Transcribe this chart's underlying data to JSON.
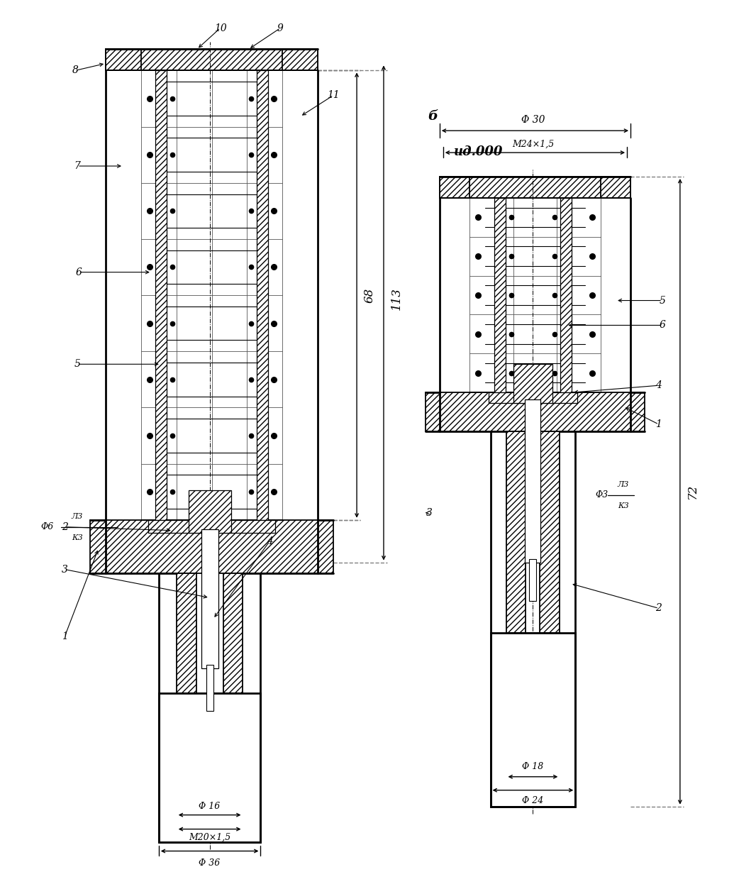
{
  "bg": "#ffffff",
  "fig_w": 10.66,
  "fig_h": 12.53,
  "annotations": {
    "b_label": "б",
    "id_label": "ид.000",
    "dim_68": "68",
    "dim_113": "113",
    "dim_72": "72",
    "phi36": "Φ 36",
    "phi16": "Φ 16",
    "m20": "M20×1,5",
    "phi6": "Φ6",
    "lz": "Л3",
    "kz": "К3",
    "phi30": "Φ 30",
    "m24": "M24×1,5",
    "phi18": "Φ 18",
    "phi24": "Φ 24",
    "phi3": "Φ3"
  }
}
